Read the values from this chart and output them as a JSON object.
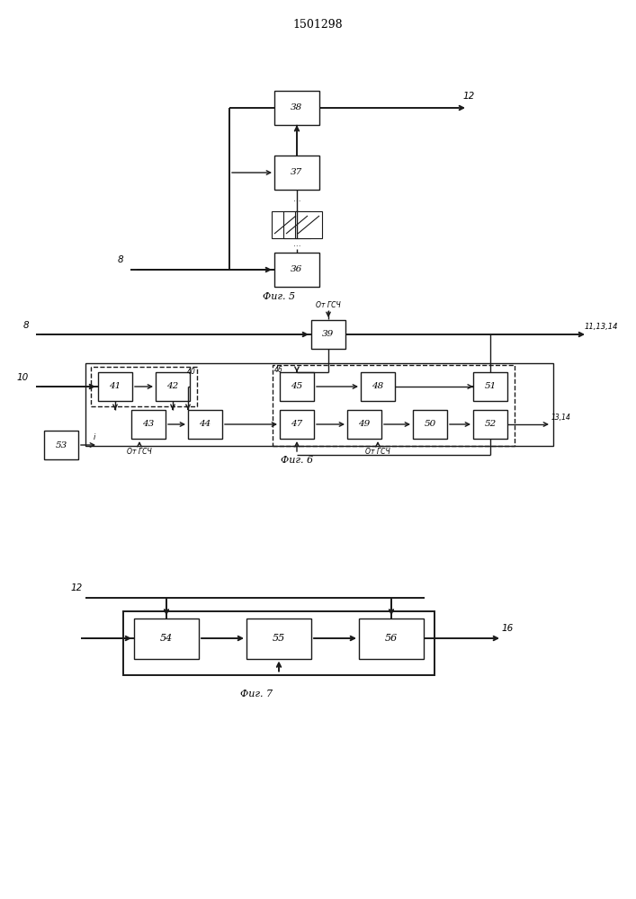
{
  "title": "1501298",
  "fig5_label": "Фиг. 5",
  "fig6_label": "Фиг. 6",
  "fig7_label": "Фиг. 7",
  "bg_color": "#ffffff",
  "line_color": "#1a1a1a",
  "box_color": "#ffffff",
  "font_size": 7.5,
  "title_font_size": 9
}
